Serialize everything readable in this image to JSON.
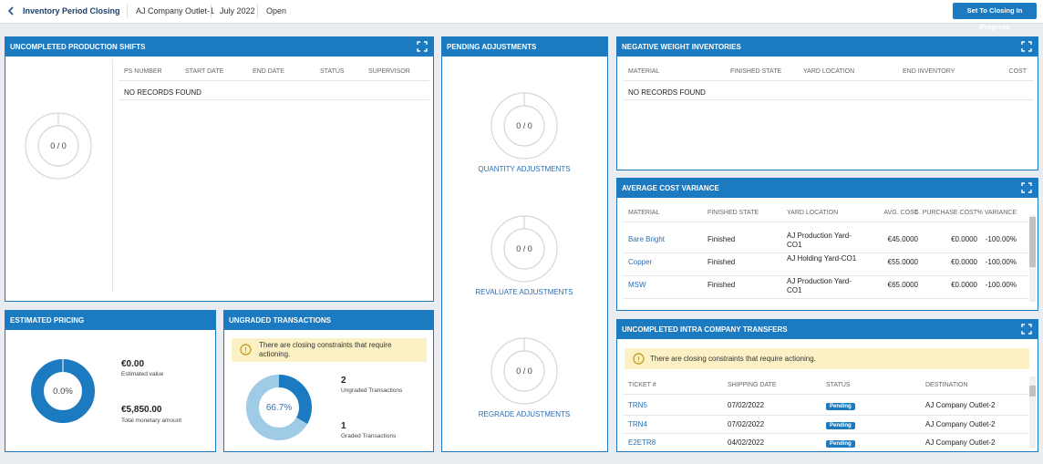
{
  "header": {
    "title": "Inventory Period Closing",
    "outlet": "AJ Company Outlet-1",
    "period": "July 2022",
    "status": "Open",
    "action": "Set To Closing In Progress"
  },
  "production_shifts": {
    "title": "UNCOMPLETED PRODUCTION SHIFTS",
    "donut_label": "0 / 0",
    "columns": [
      "PS NUMBER",
      "START DATE",
      "END DATE",
      "STATUS",
      "SUPERVISOR"
    ],
    "empty": "NO RECORDS FOUND"
  },
  "pending_adjustments": {
    "title": "PENDING ADJUSTMENTS",
    "items": [
      {
        "donut_label": "0 / 0",
        "label": "QUANTITY ADJUSTMENTS"
      },
      {
        "donut_label": "0 / 0",
        "label": "REVALUATE ADJUSTMENTS"
      },
      {
        "donut_label": "0 / 0",
        "label": "REGRADE ADJUSTMENTS"
      }
    ]
  },
  "negative_weight": {
    "title": "NEGATIVE WEIGHT INVENTORIES",
    "columns": [
      "MATERIAL",
      "FINISHED STATE",
      "YARD LOCATION",
      "END INVENTORY",
      "COST"
    ],
    "empty": "NO RECORDS FOUND"
  },
  "average_cost_variance": {
    "title": "AVERAGE COST VARIANCE",
    "columns": [
      "MATERIAL",
      "FINISHED STATE",
      "YARD LOCATION",
      "AVG. COST",
      "G. PURCHASE COST",
      "% VARIANCE"
    ],
    "rows": [
      [
        "Bare Bright",
        "Finished",
        "AJ Production Yard-CO1",
        "€45.0000",
        "€0.0000",
        "-100.00%"
      ],
      [
        "Copper",
        "Finished",
        "AJ Holding Yard-CO1",
        "€55.0000",
        "€0.0000",
        "-100.00%"
      ],
      [
        "MSW",
        "Finished",
        "AJ Production Yard-CO1",
        "€65.0000",
        "€0.0000",
        "-100.00%"
      ]
    ]
  },
  "estimated_pricing": {
    "title": "ESTIMATED PRICING",
    "donut_label": "0.0%",
    "estimated_value": "€0.00",
    "estimated_value_label": "Estimated value",
    "total_amount": "€5,850.00",
    "total_amount_label": "Total monetary amount"
  },
  "ungraded_transactions": {
    "title": "UNGRADED TRANSACTIONS",
    "warning": "There are closing constraints that require actioning.",
    "donut_label": "66.7%",
    "ungraded": 2,
    "ungraded_label": "Ungraded Transactions",
    "graded": 1,
    "graded_label": "Graded Transactions"
  },
  "intra_company_transfers": {
    "title": "UNCOMPLETED INTRA COMPANY TRANSFERS",
    "warning": "There are closing constraints that require actioning.",
    "columns": [
      "TICKET #",
      "SHIPPING DATE",
      "STATUS",
      "DESTINATION"
    ],
    "rows": [
      [
        "TRN5",
        "07/02/2022",
        "Pending",
        "AJ Company Outlet-2"
      ],
      [
        "TRN4",
        "07/02/2022",
        "Pending",
        "AJ Company Outlet-2"
      ],
      [
        "E2ETR8",
        "04/02/2022",
        "Pending",
        "AJ Company Outlet-2"
      ]
    ]
  }
}
